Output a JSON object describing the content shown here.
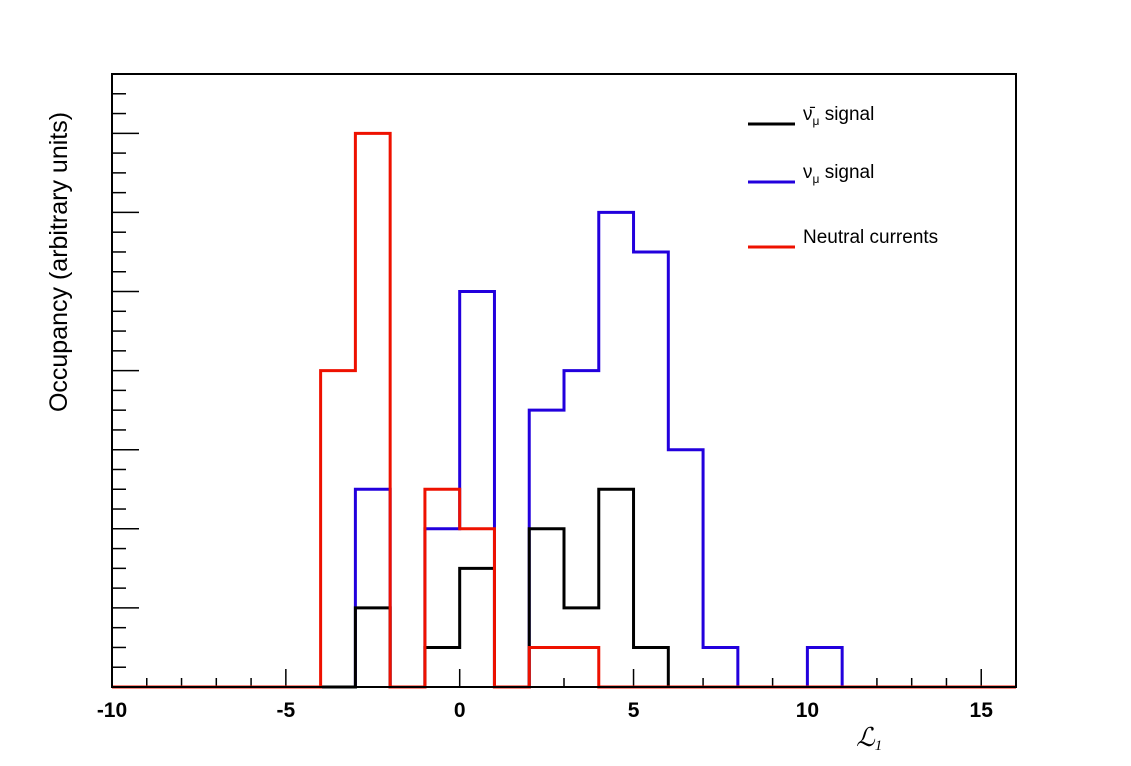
{
  "chart_data": {
    "type": "histogram",
    "xlabel": "ℒ",
    "xlabel_subscript": "1",
    "ylabel": "Occupancy (arbitrary units)",
    "xlim": [
      -10,
      16
    ],
    "ylim": [
      0,
      15.5
    ],
    "bin_edges": [
      -10,
      -9,
      -8,
      -7,
      -6,
      -5,
      -4,
      -3,
      -2,
      -1,
      0,
      1,
      2,
      3,
      4,
      5,
      6,
      7,
      8,
      9,
      10,
      11,
      12,
      13,
      14,
      15,
      16
    ],
    "x_ticks": [
      -10,
      -5,
      0,
      5,
      10,
      15
    ],
    "x_tick_labels": [
      "-10",
      "-5",
      "0",
      "5",
      "10",
      "15"
    ],
    "series": [
      {
        "name": "ν̄μ signal",
        "label_main": "ν̄",
        "label_sub": "μ",
        "label_rest": " signal",
        "color": "#000000",
        "values": [
          0,
          0,
          0,
          0,
          0,
          0,
          0,
          2,
          0,
          1,
          3,
          0,
          4,
          2,
          5,
          1,
          0,
          0,
          0,
          0,
          0,
          0,
          0,
          0,
          0,
          0
        ]
      },
      {
        "name": "νμ signal",
        "label_main": "ν",
        "label_sub": "μ",
        "label_rest": " signal",
        "color": "#2200dd",
        "values": [
          0,
          0,
          0,
          0,
          0,
          0,
          0,
          5,
          0,
          4,
          10,
          0,
          7,
          8,
          12,
          11,
          6,
          1,
          0,
          0,
          1,
          0,
          0,
          0,
          0,
          0
        ]
      },
      {
        "name": "Neutral currents",
        "label_main": "Neutral currents",
        "label_sub": "",
        "label_rest": "",
        "color": "#ee1100",
        "values": [
          0,
          0,
          0,
          0,
          0,
          0,
          8,
          14,
          0,
          5,
          4,
          0,
          1,
          1,
          0,
          0,
          0,
          0,
          0,
          0,
          0,
          0,
          0,
          0,
          0,
          0
        ]
      }
    ],
    "legend_position": "top-right",
    "grid": false
  }
}
